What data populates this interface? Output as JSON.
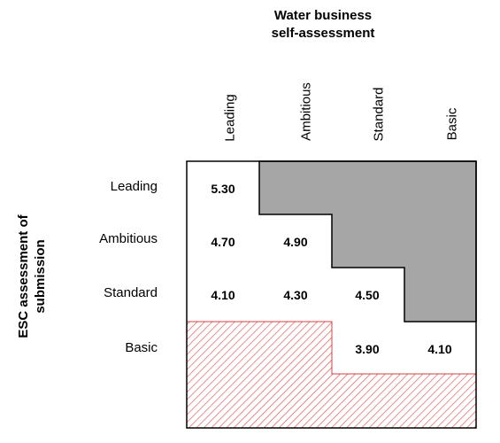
{
  "title": {
    "line1": "Water business",
    "line2": "self-assessment"
  },
  "side_title": {
    "line1": "ESC  assessment of",
    "line2": "submission"
  },
  "columns": [
    "Leading",
    "Ambitious",
    "Standard",
    "Basic"
  ],
  "rows": [
    "Leading",
    "Ambitious",
    "Standard",
    "Basic"
  ],
  "cells": {
    "r0c0": "5.30",
    "r1c0": "4.70",
    "r1c1": "4.90",
    "r2c0": "4.10",
    "r2c1": "4.30",
    "r2c2": "4.50",
    "r3c2": "3.90",
    "r3c3": "4.10"
  },
  "colors": {
    "grey_region": "#a6a6a6",
    "hatch_region": "#e05050",
    "border": "#000000"
  }
}
